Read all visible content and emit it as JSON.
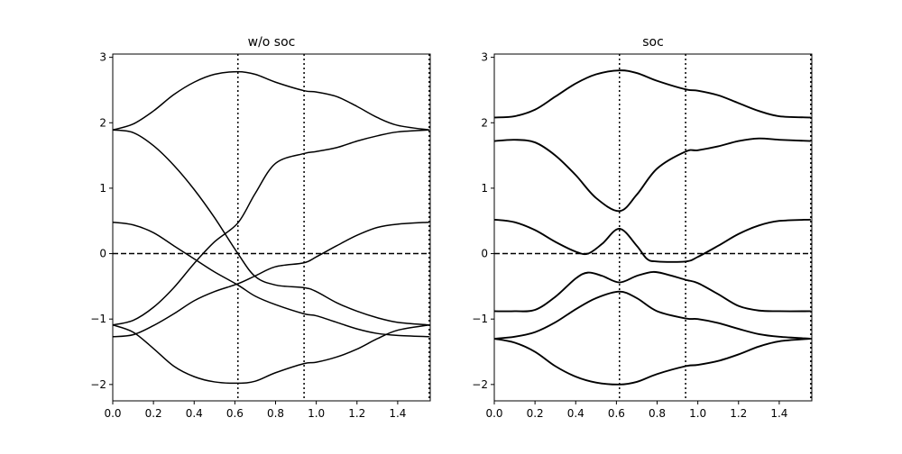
{
  "chart_data": [
    {
      "type": "line",
      "title": "w/o soc",
      "xlim": [
        0.0,
        1.56
      ],
      "ylim": [
        -2.25,
        3.05
      ],
      "xticks": [
        "0.0",
        "0.2",
        "0.4",
        "0.6",
        "0.8",
        "1.0",
        "1.2",
        "1.4"
      ],
      "yticks": [
        "−2",
        "−1",
        "0",
        "1",
        "2",
        "3"
      ],
      "vlines": [
        0.615,
        0.94,
        1.555
      ],
      "fermi_level": 0,
      "line_color": "#000000",
      "series": [
        {
          "x": [
            0,
            0.1,
            0.2,
            0.3,
            0.4,
            0.5,
            0.615,
            0.7,
            0.8,
            0.94,
            1.0,
            1.1,
            1.2,
            1.3,
            1.4,
            1.555
          ],
          "values": [
            1.89,
            1.98,
            2.18,
            2.43,
            2.62,
            2.74,
            2.78,
            2.74,
            2.62,
            2.49,
            2.47,
            2.4,
            2.25,
            2.08,
            1.96,
            1.89
          ]
        },
        {
          "x": [
            0,
            0.1,
            0.2,
            0.3,
            0.4,
            0.5,
            0.615,
            0.7,
            0.8,
            0.94,
            1.0,
            1.1,
            1.2,
            1.3,
            1.4,
            1.555
          ],
          "values": [
            1.89,
            1.85,
            1.65,
            1.35,
            0.98,
            0.55,
            0.0,
            -0.35,
            -0.48,
            -0.52,
            -0.58,
            -0.75,
            -0.88,
            -0.98,
            -1.05,
            -1.09
          ]
        },
        {
          "x": [
            0,
            0.1,
            0.2,
            0.3,
            0.4,
            0.5,
            0.615,
            0.7,
            0.8,
            0.94,
            1.0,
            1.1,
            1.2,
            1.3,
            1.4,
            1.555
          ],
          "values": [
            0.48,
            0.44,
            0.32,
            0.12,
            -0.08,
            -0.28,
            -0.48,
            -0.65,
            -0.78,
            -0.92,
            -0.95,
            -1.05,
            -1.15,
            -1.22,
            -1.25,
            -1.27
          ]
        },
        {
          "x": [
            0,
            0.1,
            0.2,
            0.3,
            0.4,
            0.5,
            0.615,
            0.7,
            0.8,
            0.94,
            1.0,
            1.1,
            1.2,
            1.3,
            1.4,
            1.555
          ],
          "values": [
            -1.09,
            -1.02,
            -0.82,
            -0.52,
            -0.15,
            0.18,
            0.47,
            0.92,
            1.38,
            1.53,
            1.56,
            1.62,
            1.72,
            1.8,
            1.86,
            1.89
          ]
        },
        {
          "x": [
            0,
            0.1,
            0.2,
            0.3,
            0.4,
            0.5,
            0.615,
            0.7,
            0.8,
            0.94,
            1.0,
            1.1,
            1.2,
            1.3,
            1.4,
            1.555
          ],
          "values": [
            -1.27,
            -1.24,
            -1.1,
            -0.92,
            -0.72,
            -0.58,
            -0.46,
            -0.34,
            -0.2,
            -0.14,
            -0.05,
            0.12,
            0.28,
            0.4,
            0.45,
            0.48
          ]
        },
        {
          "x": [
            0,
            0.1,
            0.2,
            0.3,
            0.4,
            0.5,
            0.615,
            0.7,
            0.8,
            0.94,
            1.0,
            1.1,
            1.2,
            1.3,
            1.4,
            1.555
          ],
          "values": [
            -1.09,
            -1.2,
            -1.45,
            -1.72,
            -1.88,
            -1.96,
            -1.98,
            -1.95,
            -1.82,
            -1.68,
            -1.66,
            -1.58,
            -1.46,
            -1.3,
            -1.17,
            -1.09
          ]
        }
      ]
    },
    {
      "type": "line",
      "title": "soc",
      "xlim": [
        0.0,
        1.56
      ],
      "ylim": [
        -2.25,
        3.05
      ],
      "xticks": [
        "0.0",
        "0.2",
        "0.4",
        "0.6",
        "0.8",
        "1.0",
        "1.2",
        "1.4"
      ],
      "yticks": [
        "−2",
        "−1",
        "0",
        "1",
        "2",
        "3"
      ],
      "vlines": [
        0.615,
        0.94,
        1.555
      ],
      "fermi_level": 0,
      "line_color": "#000000",
      "series": [
        {
          "x": [
            0,
            0.1,
            0.2,
            0.3,
            0.4,
            0.5,
            0.615,
            0.7,
            0.8,
            0.94,
            1.0,
            1.1,
            1.2,
            1.3,
            1.4,
            1.555
          ],
          "values": [
            2.08,
            2.1,
            2.2,
            2.4,
            2.6,
            2.74,
            2.8,
            2.76,
            2.64,
            2.51,
            2.49,
            2.42,
            2.3,
            2.18,
            2.1,
            2.08
          ]
        },
        {
          "x": [
            0,
            0.1,
            0.2,
            0.3,
            0.4,
            0.5,
            0.615,
            0.7,
            0.8,
            0.94,
            1.0,
            1.1,
            1.2,
            1.3,
            1.4,
            1.555
          ],
          "values": [
            1.72,
            1.74,
            1.7,
            1.5,
            1.2,
            0.85,
            0.65,
            0.9,
            1.3,
            1.56,
            1.58,
            1.64,
            1.72,
            1.76,
            1.74,
            1.72
          ]
        },
        {
          "x": [
            0,
            0.1,
            0.2,
            0.3,
            0.4,
            0.46,
            0.53,
            0.615,
            0.7,
            0.75,
            0.8,
            0.94,
            1.0,
            1.1,
            1.2,
            1.3,
            1.4,
            1.555
          ],
          "values": [
            0.52,
            0.48,
            0.36,
            0.18,
            0.03,
            0.0,
            0.15,
            0.38,
            0.12,
            -0.08,
            -0.12,
            -0.12,
            -0.05,
            0.12,
            0.3,
            0.43,
            0.5,
            0.52
          ]
        },
        {
          "x": [
            0,
            0.1,
            0.2,
            0.3,
            0.4,
            0.46,
            0.53,
            0.615,
            0.7,
            0.78,
            0.85,
            0.94,
            1.0,
            1.1,
            1.2,
            1.3,
            1.4,
            1.555
          ],
          "values": [
            -0.88,
            -0.88,
            -0.86,
            -0.66,
            -0.38,
            -0.29,
            -0.34,
            -0.44,
            -0.34,
            -0.28,
            -0.32,
            -0.4,
            -0.45,
            -0.62,
            -0.8,
            -0.87,
            -0.88,
            -0.88
          ]
        },
        {
          "x": [
            0,
            0.1,
            0.2,
            0.3,
            0.4,
            0.5,
            0.615,
            0.7,
            0.8,
            0.94,
            1.0,
            1.1,
            1.2,
            1.3,
            1.4,
            1.555
          ],
          "values": [
            -1.3,
            -1.27,
            -1.2,
            -1.05,
            -0.85,
            -0.68,
            -0.58,
            -0.68,
            -0.88,
            -0.99,
            -1.0,
            -1.06,
            -1.15,
            -1.23,
            -1.27,
            -1.3
          ]
        },
        {
          "x": [
            0,
            0.1,
            0.2,
            0.3,
            0.4,
            0.5,
            0.615,
            0.7,
            0.8,
            0.94,
            1.0,
            1.1,
            1.2,
            1.3,
            1.4,
            1.555
          ],
          "values": [
            -1.3,
            -1.36,
            -1.5,
            -1.72,
            -1.88,
            -1.97,
            -2.0,
            -1.96,
            -1.84,
            -1.72,
            -1.7,
            -1.64,
            -1.54,
            -1.42,
            -1.34,
            -1.3
          ]
        }
      ]
    }
  ]
}
